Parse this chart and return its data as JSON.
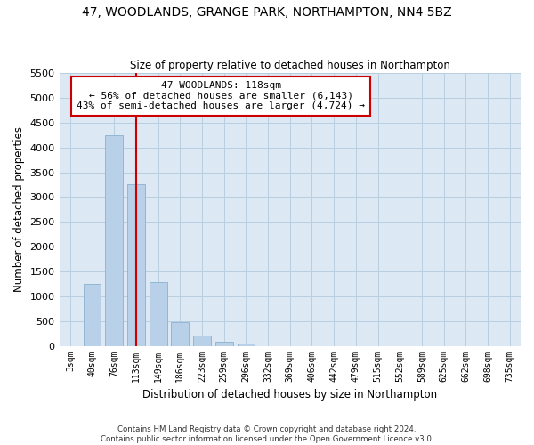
{
  "title_line1": "47, WOODLANDS, GRANGE PARK, NORTHAMPTON, NN4 5BZ",
  "title_line2": "Size of property relative to detached houses in Northampton",
  "xlabel": "Distribution of detached houses by size in Northampton",
  "ylabel": "Number of detached properties",
  "footer_line1": "Contains HM Land Registry data © Crown copyright and database right 2024.",
  "footer_line2": "Contains public sector information licensed under the Open Government Licence v3.0.",
  "bar_color": "#b8d0e8",
  "bar_edgecolor": "#8ab0d0",
  "redline_color": "#cc0000",
  "annotation_box_edgecolor": "#cc0000",
  "background_color": "#ffffff",
  "plot_bg_color": "#dce8f4",
  "grid_color": "#b8cfe0",
  "categories": [
    "3sqm",
    "40sqm",
    "76sqm",
    "113sqm",
    "149sqm",
    "186sqm",
    "223sqm",
    "259sqm",
    "296sqm",
    "332sqm",
    "369sqm",
    "406sqm",
    "442sqm",
    "479sqm",
    "515sqm",
    "552sqm",
    "589sqm",
    "625sqm",
    "662sqm",
    "698sqm",
    "735sqm"
  ],
  "values": [
    0,
    1250,
    4250,
    3250,
    1280,
    480,
    200,
    80,
    40,
    0,
    0,
    0,
    0,
    0,
    0,
    0,
    0,
    0,
    0,
    0,
    0
  ],
  "ylim": [
    0,
    5500
  ],
  "yticks": [
    0,
    500,
    1000,
    1500,
    2000,
    2500,
    3000,
    3500,
    4000,
    4500,
    5000,
    5500
  ],
  "redline_index": 3,
  "annotation_text_line1": "47 WOODLANDS: 118sqm",
  "annotation_text_line2": "← 56% of detached houses are smaller (6,143)",
  "annotation_text_line3": "43% of semi-detached houses are larger (4,724) →"
}
